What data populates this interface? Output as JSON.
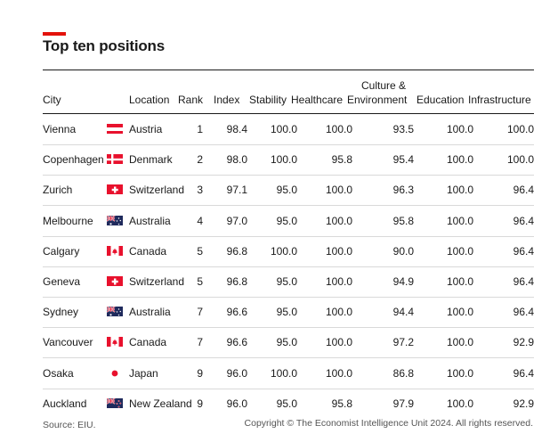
{
  "title": "Top ten positions",
  "headers": {
    "city": "City",
    "location": "Location",
    "rank": "Rank",
    "index": "Index",
    "stability": "Stability",
    "healthcare": "Healthcare",
    "culture_line1": "Culture &",
    "culture_line2": "Environment",
    "education": "Education",
    "infrastructure": "Infrastructure"
  },
  "chart_data": {
    "type": "table",
    "columns": [
      "City",
      "Location",
      "Rank",
      "Index",
      "Stability",
      "Healthcare",
      "Culture & Environment",
      "Education",
      "Infrastructure"
    ],
    "rows": [
      {
        "city": "Vienna",
        "flag": "austria-flag",
        "location": "Austria",
        "rank": "1",
        "index": "98.4",
        "stability": "100.0",
        "healthcare": "100.0",
        "culture": "93.5",
        "education": "100.0",
        "infrastructure": "100.0"
      },
      {
        "city": "Copenhagen",
        "flag": "denmark-flag",
        "location": "Denmark",
        "rank": "2",
        "index": "98.0",
        "stability": "100.0",
        "healthcare": "95.8",
        "culture": "95.4",
        "education": "100.0",
        "infrastructure": "100.0"
      },
      {
        "city": "Zurich",
        "flag": "switzerland-flag",
        "location": "Switzerland",
        "rank": "3",
        "index": "97.1",
        "stability": "95.0",
        "healthcare": "100.0",
        "culture": "96.3",
        "education": "100.0",
        "infrastructure": "96.4"
      },
      {
        "city": "Melbourne",
        "flag": "australia-flag",
        "location": "Australia",
        "rank": "4",
        "index": "97.0",
        "stability": "95.0",
        "healthcare": "100.0",
        "culture": "95.8",
        "education": "100.0",
        "infrastructure": "96.4"
      },
      {
        "city": "Calgary",
        "flag": "canada-flag",
        "location": "Canada",
        "rank": "5",
        "index": "96.8",
        "stability": "100.0",
        "healthcare": "100.0",
        "culture": "90.0",
        "education": "100.0",
        "infrastructure": "96.4"
      },
      {
        "city": "Geneva",
        "flag": "switzerland-flag",
        "location": "Switzerland",
        "rank": "5",
        "index": "96.8",
        "stability": "95.0",
        "healthcare": "100.0",
        "culture": "94.9",
        "education": "100.0",
        "infrastructure": "96.4"
      },
      {
        "city": "Sydney",
        "flag": "australia-flag",
        "location": "Australia",
        "rank": "7",
        "index": "96.6",
        "stability": "95.0",
        "healthcare": "100.0",
        "culture": "94.4",
        "education": "100.0",
        "infrastructure": "96.4"
      },
      {
        "city": "Vancouver",
        "flag": "canada-flag",
        "location": "Canada",
        "rank": "7",
        "index": "96.6",
        "stability": "95.0",
        "healthcare": "100.0",
        "culture": "97.2",
        "education": "100.0",
        "infrastructure": "92.9"
      },
      {
        "city": "Osaka",
        "flag": "japan-flag",
        "location": "Japan",
        "rank": "9",
        "index": "96.0",
        "stability": "100.0",
        "healthcare": "100.0",
        "culture": "86.8",
        "education": "100.0",
        "infrastructure": "96.4"
      },
      {
        "city": "Auckland",
        "flag": "new-zealand-flag",
        "location": "New Zealand",
        "rank": "9",
        "index": "96.0",
        "stability": "95.0",
        "healthcare": "95.8",
        "culture": "97.9",
        "education": "100.0",
        "infrastructure": "92.9"
      }
    ]
  },
  "colors": {
    "accent": "#e3120b",
    "flag_red": "#e8112d",
    "flag_navy": "#1f2a5c"
  },
  "footer": {
    "source": "Source: EIU.",
    "copyright": "Copyright © The Economist Intelligence Unit 2024. All rights reserved."
  }
}
